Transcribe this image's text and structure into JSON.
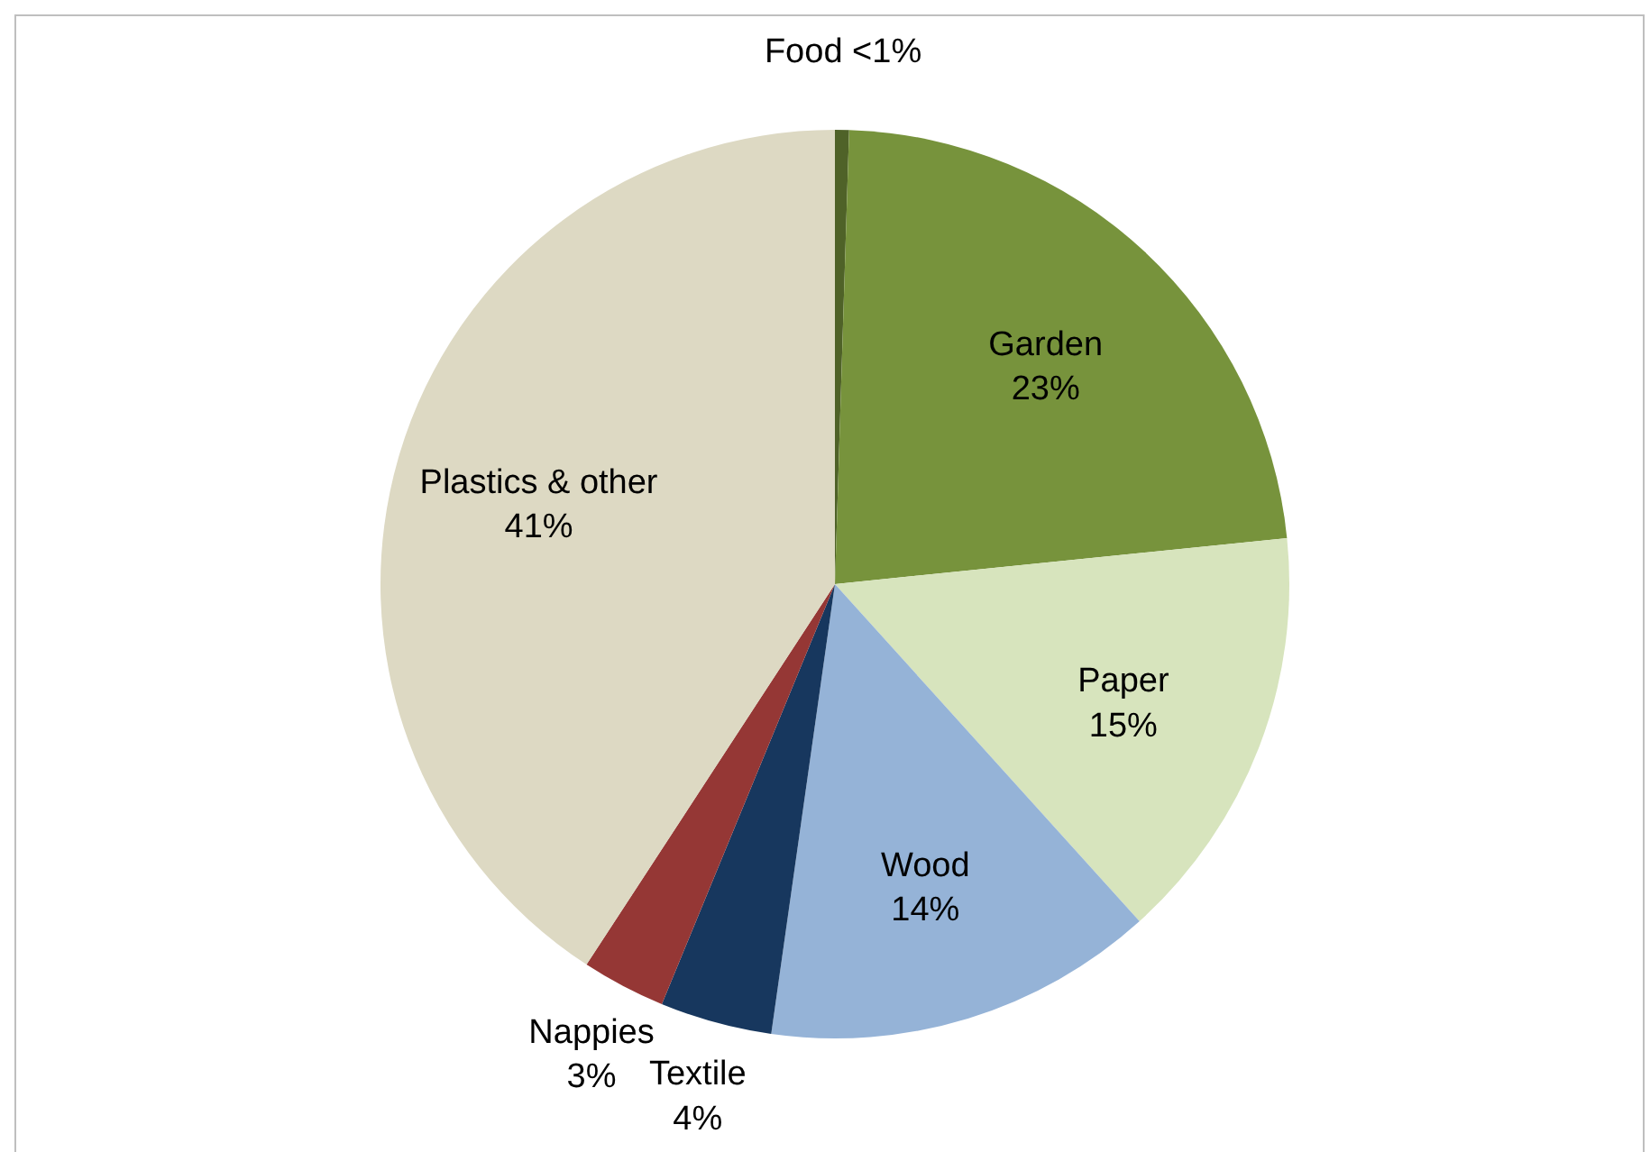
{
  "chart_data": {
    "type": "pie",
    "categories": [
      "Food",
      "Garden",
      "Paper",
      "Wood",
      "Textile",
      "Nappies",
      "Plastics & other"
    ],
    "values": [
      0.5,
      23,
      15,
      14,
      4,
      3,
      41
    ],
    "value_labels": [
      "<1%",
      "23%",
      "15%",
      "14%",
      "4%",
      "3%",
      "41%"
    ],
    "colors": [
      "#4f6228",
      "#77933c",
      "#d7e4bd",
      "#95b3d7",
      "#17375e",
      "#953735",
      "#ddd9c3"
    ],
    "legend": false
  }
}
